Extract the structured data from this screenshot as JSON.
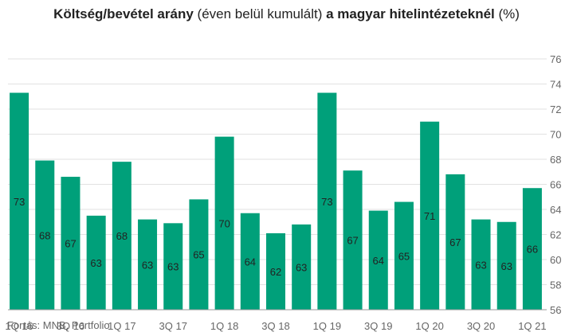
{
  "title": {
    "part1": "Költség/bevétel arány",
    "part2": " (éven belül kumulált) ",
    "part3": "a magyar hitelintézeteknél",
    "part4": " (%)"
  },
  "source": "Forrás: MNB, Portfolio",
  "colors": {
    "bar": "#00a07a",
    "grid": "#e2e2e2",
    "axis": "#999999",
    "text": "#222222",
    "tick": "#666666"
  },
  "chart_data": {
    "type": "bar",
    "categories": [
      "1Q 16",
      "2Q 16",
      "3Q 16",
      "4Q 16",
      "1Q 17",
      "2Q 17",
      "3Q 17",
      "4Q 17",
      "1Q 18",
      "2Q 18",
      "3Q 18",
      "4Q 18",
      "1Q 19",
      "2Q 19",
      "3Q 19",
      "4Q 19",
      "1Q 20",
      "2Q 20",
      "3Q 20",
      "4Q 20",
      "1Q 21"
    ],
    "category_labels_shown": [
      "1Q 16",
      "",
      "3Q 16",
      "",
      "1Q 17",
      "",
      "3Q 17",
      "",
      "1Q 18",
      "",
      "3Q 18",
      "",
      "1Q 19",
      "",
      "3Q 19",
      "",
      "1Q 20",
      "",
      "3Q 20",
      "",
      "1Q 21"
    ],
    "values": [
      73.3,
      67.9,
      66.6,
      63.5,
      67.8,
      63.2,
      62.9,
      64.8,
      69.8,
      63.7,
      62.1,
      62.8,
      73.3,
      67.1,
      63.9,
      64.6,
      71.0,
      66.8,
      63.2,
      63.0,
      65.7
    ],
    "data_labels": [
      "73",
      "68",
      "67",
      "63",
      "68",
      "63",
      "63",
      "65",
      "70",
      "64",
      "62",
      "63",
      "73",
      "67",
      "64",
      "65",
      "71",
      "67",
      "63",
      "63",
      "66"
    ],
    "y_ticks": [
      56,
      58,
      60,
      62,
      64,
      66,
      68,
      70,
      72,
      74,
      76
    ],
    "ylim": [
      56,
      76
    ],
    "y_axis_side": "right",
    "grid": true,
    "legend": "none",
    "xlabel": "",
    "ylabel": ""
  }
}
